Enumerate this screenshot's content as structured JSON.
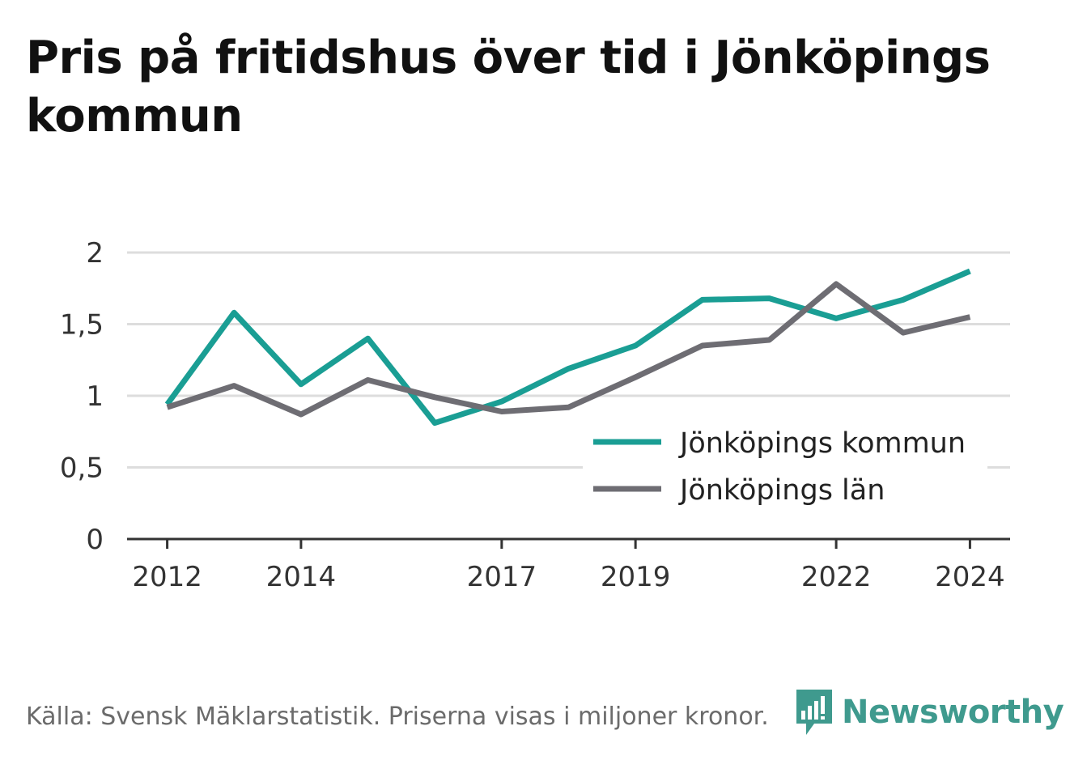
{
  "title": "Pris på fritidshus över tid i Jönköpings kommun",
  "source": "Källa: Svensk Mäklarstatistik. Priserna visas i miljoner kronor.",
  "brand": "Newsworthy",
  "colors": {
    "kommun": "#1a9e94",
    "lan": "#6e6d73",
    "grid": "#dddddd",
    "axis": "#333333",
    "brand": "#3f9a8e"
  },
  "chart_data": {
    "type": "line",
    "title": "Pris på fritidshus över tid i Jönköpings kommun",
    "xlabel": "",
    "ylabel": "",
    "x": [
      2012,
      2013,
      2014,
      2015,
      2016,
      2017,
      2018,
      2019,
      2020,
      2021,
      2022,
      2023,
      2024
    ],
    "xticks": [
      "2012",
      "2014",
      "2017",
      "2019",
      "2022",
      "2024"
    ],
    "xlim": [
      2011.4,
      2024.6
    ],
    "yticks": [
      "0",
      "0,5",
      "1",
      "1,5",
      "2"
    ],
    "ylim": [
      0,
      2
    ],
    "grid": true,
    "legend_position": "bottom-right",
    "series": [
      {
        "name": "Jönköpings kommun",
        "color": "#1a9e94",
        "values": [
          0.94,
          1.58,
          1.08,
          1.4,
          0.81,
          0.96,
          1.19,
          1.35,
          1.67,
          1.68,
          1.54,
          1.67,
          1.87
        ]
      },
      {
        "name": "Jönköpings län",
        "color": "#6e6d73",
        "values": [
          0.92,
          1.07,
          0.87,
          1.11,
          0.99,
          0.89,
          0.92,
          1.13,
          1.35,
          1.39,
          1.78,
          1.44,
          1.55
        ]
      }
    ]
  }
}
